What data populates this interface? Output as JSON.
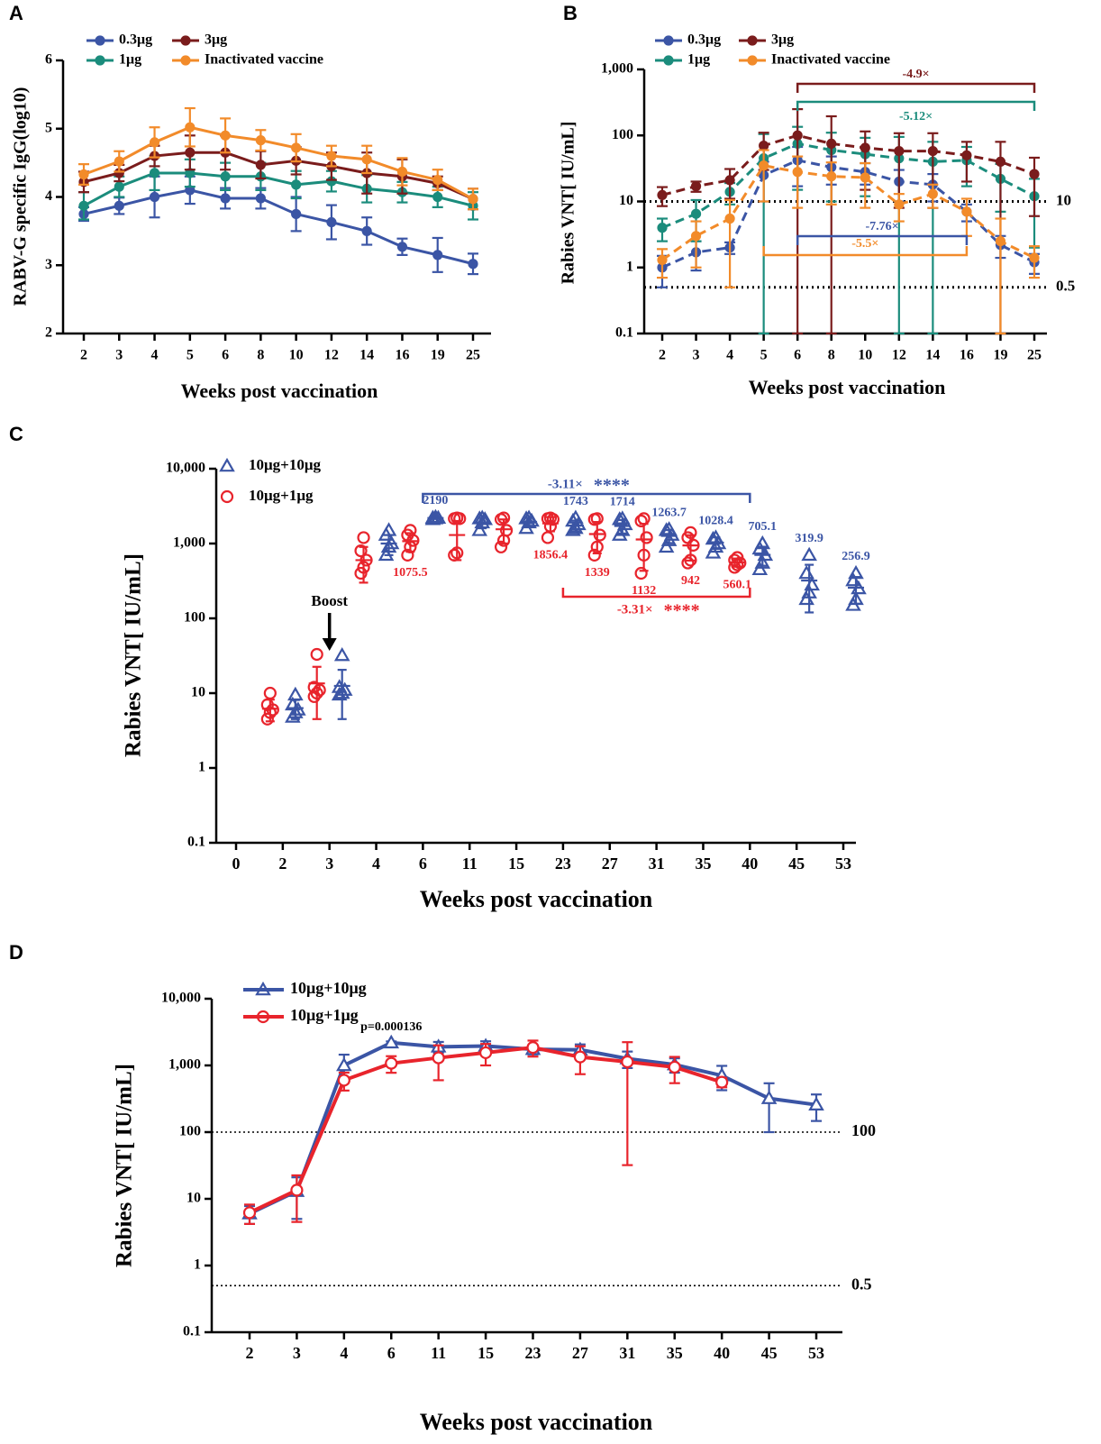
{
  "chart_data": [
    {
      "type": "line",
      "panel": "A",
      "xlabel": "Weeks post vaccination",
      "ylabel": "RABV-G specific IgG(log10)",
      "categories": [
        "2",
        "3",
        "4",
        "5",
        "6",
        "8",
        "10",
        "12",
        "14",
        "16",
        "19",
        "25"
      ],
      "ylim": [
        2,
        6
      ],
      "yticks": [
        2,
        3,
        4,
        5,
        6
      ],
      "line_style": "solid",
      "legend": "top",
      "series": [
        {
          "name": "0.3μg",
          "color": "#3b55a5",
          "values": [
            3.75,
            3.87,
            4.0,
            4.1,
            3.98,
            3.98,
            3.75,
            3.63,
            3.5,
            3.27,
            3.15,
            3.02
          ],
          "errors": [
            0.1,
            0.12,
            0.3,
            0.2,
            0.15,
            0.15,
            0.25,
            0.25,
            0.2,
            0.12,
            0.25,
            0.15
          ]
        },
        {
          "name": "1μg",
          "color": "#1b8c7c",
          "values": [
            3.87,
            4.15,
            4.35,
            4.35,
            4.3,
            4.3,
            4.18,
            4.23,
            4.12,
            4.07,
            4.0,
            3.87
          ],
          "errors": [
            0.2,
            0.15,
            0.25,
            0.2,
            0.2,
            0.2,
            0.2,
            0.15,
            0.2,
            0.15,
            0.15,
            0.2
          ]
        },
        {
          "name": "3μg",
          "color": "#7a1c1c",
          "values": [
            4.22,
            4.35,
            4.6,
            4.65,
            4.65,
            4.47,
            4.53,
            4.45,
            4.35,
            4.3,
            4.2,
            3.97
          ],
          "errors": [
            0.15,
            0.12,
            0.15,
            0.25,
            0.25,
            0.2,
            0.2,
            0.2,
            0.3,
            0.25,
            0.1,
            0.15
          ]
        },
        {
          "name": "Inactivated vaccine",
          "color": "#f28b2a",
          "values": [
            4.33,
            4.52,
            4.8,
            5.02,
            4.9,
            4.83,
            4.72,
            4.6,
            4.55,
            4.37,
            4.25,
            3.97
          ],
          "errors": [
            0.15,
            0.15,
            0.22,
            0.28,
            0.25,
            0.15,
            0.2,
            0.15,
            0.2,
            0.2,
            0.15,
            0.15
          ]
        }
      ]
    },
    {
      "type": "line",
      "panel": "B",
      "xlabel": "Weeks post vaccination",
      "ylabel": "Rabies VNT[ IU/mL]",
      "categories": [
        "2",
        "3",
        "4",
        "5",
        "6",
        "8",
        "10",
        "12",
        "14",
        "16",
        "19",
        "25"
      ],
      "log_scale": true,
      "ylim": [
        0.1,
        1000
      ],
      "yticks": [
        0.1,
        1,
        10,
        100,
        {
          "value": 1000,
          "label": "1,000"
        }
      ],
      "line_style": "dashed",
      "legend": "top",
      "reference_lines": [
        10,
        0.5
      ],
      "series": [
        {
          "name": "0.3μg",
          "color": "#3b55a5",
          "values": [
            1.0,
            1.7,
            2.0,
            25,
            42,
            33,
            28,
            20,
            18,
            7,
            2.2,
            1.2
          ],
          "errors": [
            0.5,
            0.8,
            0.4,
            15,
            25,
            15,
            10,
            10,
            8,
            2,
            0.8,
            0.4
          ]
        },
        {
          "name": "1μg",
          "color": "#1b8c7c",
          "values": [
            4,
            6.5,
            14,
            45,
            75,
            60,
            52,
            45,
            40,
            42,
            22,
            12
          ],
          "errors": [
            1.5,
            4,
            5,
            60,
            60,
            50,
            40,
            50,
            40,
            25,
            15,
            10
          ]
        },
        {
          "name": "3μg",
          "color": "#7a1c1c",
          "values": [
            12.5,
            17,
            21,
            70,
            100,
            75,
            65,
            58,
            58,
            50,
            40,
            26
          ],
          "errors": [
            4,
            3,
            10,
            40,
            150,
            120,
            50,
            50,
            50,
            30,
            40,
            20
          ]
        },
        {
          "name": "Inactivated vaccine",
          "color": "#f28b2a",
          "values": [
            1.3,
            3,
            5.5,
            35,
            28,
            24,
            23,
            9,
            13,
            7,
            2.5,
            1.4
          ],
          "errors": [
            0.6,
            2,
            5,
            25,
            20,
            15,
            15,
            4,
            5,
            4,
            3,
            0.7
          ]
        }
      ],
      "annotations": [
        {
          "text": "-4.9×",
          "from": "6",
          "to": "25",
          "color": "#7a1c1c"
        },
        {
          "text": "-5.12×",
          "from": "6",
          "to": "25",
          "color": "#1b8c7c"
        },
        {
          "text": "-7.76×",
          "from": "6",
          "to": "16",
          "color": "#3b55a5"
        },
        {
          "text": "-5.5×",
          "from": "5",
          "to": "16",
          "color": "#f28b2a"
        }
      ]
    },
    {
      "type": "strip",
      "panel": "C",
      "xlabel": "Weeks post vaccination",
      "ylabel": "Rabies VNT[ IU/mL]",
      "categories": [
        "0",
        "2",
        "3",
        "4",
        "6",
        "11",
        "15",
        "23",
        "27",
        "31",
        "35",
        "40",
        "45",
        "53"
      ],
      "log_scale": true,
      "ylim": [
        0.1,
        10000
      ],
      "yticks": [
        0.1,
        1,
        10,
        100,
        {
          "value": 1000,
          "label": "1,000"
        },
        {
          "value": 10000,
          "label": "10,000"
        }
      ],
      "legend": "top-left",
      "series": [
        {
          "name": "10μg+10μg",
          "color": "#3b55a5",
          "marker": "triangle",
          "values": [
            null,
            [
              4.8,
              5.5,
              6,
              7,
              9.5
            ],
            [
              9.5,
              10,
              11,
              12,
              32
            ],
            [
              700,
              900,
              1000,
              1300,
              1500
            ],
            [
              2100,
              2150,
              2190,
              2200,
              2250
            ],
            [
              1500,
              1900,
              2100,
              2150,
              2200
            ],
            [
              1600,
              1900,
              2000,
              2150,
              2200
            ],
            [
              1500,
              1600,
              1800,
              2000,
              2200
            ],
            [
              1300,
              1500,
              1800,
              2100,
              2150
            ],
            [
              900,
              1100,
              1300,
              1500,
              1550
            ],
            [
              750,
              900,
              1000,
              1150,
              1200
            ],
            [
              450,
              550,
              700,
              850,
              1000
            ],
            [
              180,
              220,
              280,
              400,
              700
            ],
            [
              150,
              180,
              250,
              320,
              400
            ]
          ],
          "means": [
            null,
            6.3,
            12.5,
            1000,
            2190,
            1900,
            1950,
            1743,
            1714,
            1263.7,
            1028.4,
            705.1,
            319.9,
            256.9
          ],
          "sd": [
            null,
            1.8,
            8,
            300,
            50,
            300,
            250,
            280,
            350,
            250,
            180,
            200,
            200,
            100
          ],
          "mean_labels": [
            null,
            null,
            null,
            null,
            "2190",
            null,
            null,
            "1743",
            "1714",
            "1263.7",
            "1028.4",
            "705.1",
            "319.9",
            "256.9"
          ]
        },
        {
          "name": "10μg+1μg",
          "color": "#e8242c",
          "marker": "circle",
          "values": [
            null,
            [
              4.5,
              5.5,
              6,
              7,
              10
            ],
            [
              9,
              10,
              11,
              12,
              33
            ],
            [
              400,
              480,
              600,
              800,
              1200
            ],
            [
              700,
              900,
              1100,
              1300,
              1500
            ],
            [
              700,
              750,
              2150,
              2150,
              2200
            ],
            [
              900,
              1100,
              1500,
              2100,
              2200
            ],
            [
              1200,
              1700,
              2100,
              2150,
              2200
            ],
            [
              700,
              900,
              1300,
              2100,
              2150
            ],
            [
              400,
              700,
              1200,
              2000,
              2150
            ],
            [
              550,
              600,
              950,
              1200,
              1400
            ],
            [
              480,
              520,
              550,
              600,
              650
            ],
            null,
            null
          ],
          "means": [
            null,
            6.2,
            13.5,
            600,
            1075.5,
            1300,
            1550,
            1856.4,
            1339,
            1132,
            942,
            560.1,
            null,
            null
          ],
          "sd": [
            null,
            2,
            9,
            300,
            300,
            700,
            550,
            400,
            600,
            700,
            350,
            70,
            null,
            null
          ],
          "mean_labels": [
            null,
            null,
            null,
            null,
            "1075.5",
            null,
            null,
            "1856.4",
            "1339",
            "1132",
            "942",
            "560.1",
            null,
            null
          ]
        }
      ],
      "boost": {
        "text": "Boost",
        "at": "3"
      },
      "annotations": [
        {
          "text": "-3.11×",
          "stars": "****",
          "from": "6",
          "to": "40",
          "color": "#3b55a5"
        },
        {
          "text": "-3.31×",
          "stars": "****",
          "from": "23",
          "to": "40",
          "color": "#e8242c"
        }
      ]
    },
    {
      "type": "line",
      "panel": "D",
      "xlabel": "Weeks post vaccination",
      "ylabel": "Rabies VNT[ IU/mL]",
      "categories": [
        "2",
        "3",
        "4",
        "6",
        "11",
        "15",
        "23",
        "27",
        "31",
        "35",
        "40",
        "45",
        "53"
      ],
      "log_scale": true,
      "ylim": [
        0.1,
        10000
      ],
      "yticks": [
        0.1,
        1,
        10,
        100,
        {
          "value": 1000,
          "label": "1,000"
        },
        {
          "value": 10000,
          "label": "10,000"
        }
      ],
      "line_style": "solid",
      "legend": "top-left",
      "reference_lines": [
        100,
        0.5
      ],
      "series": [
        {
          "name": "10μg+10μg",
          "color": "#3b55a5",
          "marker": "triangle",
          "values": [
            6,
            13,
            1000,
            2190,
            1900,
            1950,
            1743,
            1714,
            1263.7,
            1028.4,
            705.1,
            319.9,
            256.9
          ],
          "errors": [
            1.8,
            8,
            450,
            100,
            350,
            350,
            280,
            350,
            350,
            250,
            280,
            220,
            110
          ]
        },
        {
          "name": "10μg+1μg",
          "color": "#e8242c",
          "marker": "circle",
          "values": [
            6.2,
            13.5,
            600,
            1075.5,
            1300,
            1550,
            1856.4,
            1339,
            1132,
            942,
            560.1,
            null,
            null
          ],
          "errors": [
            2,
            9,
            180,
            300,
            700,
            550,
            500,
            600,
            1100,
            400,
            90,
            null,
            null
          ]
        }
      ],
      "annotations": [
        {
          "text": "p=0.000136",
          "at": "6"
        }
      ]
    }
  ]
}
